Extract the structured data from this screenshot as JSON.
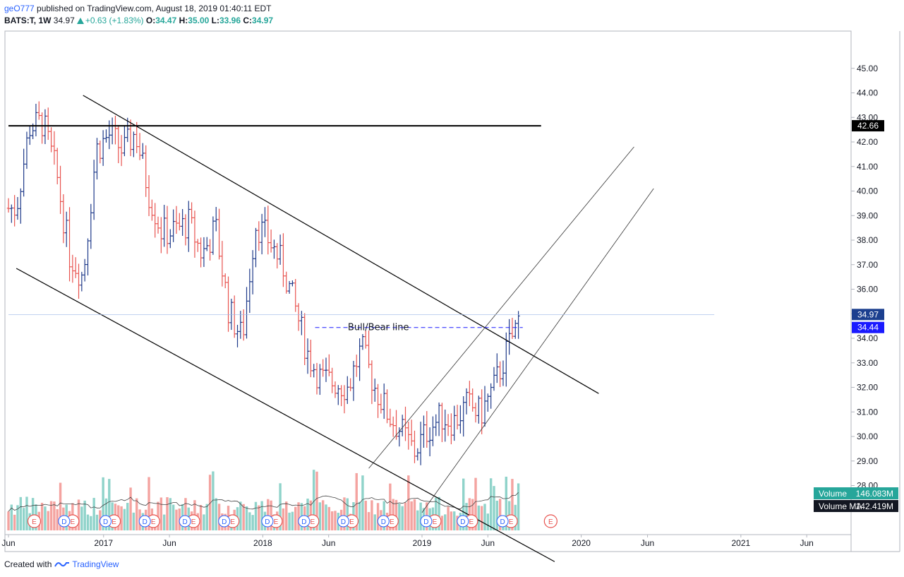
{
  "header": {
    "user": "geO777",
    "published_text": "published on TradingView.com, August 18, 2019 01:40:11 EDT",
    "symbol": "BATS:T, 1W",
    "last": "34.97",
    "change": "+0.63 (+1.83%)",
    "o_label": "O:",
    "o_value": "34.47",
    "h_label": "H:",
    "h_value": "35.00",
    "l_label": "L:",
    "l_value": "33.96",
    "c_label": "C:",
    "c_value": "34.97"
  },
  "footer": {
    "created_with": "Created with",
    "brand": "TradingView"
  },
  "colors": {
    "up": "#1e3a8a",
    "down": "#e8534f",
    "vol_up": "#8fd3ca",
    "vol_down": "#f4a3a0",
    "accent_blue": "#2962ff",
    "volume_badge": "#26a69a",
    "price_badge": "#1c3f8f",
    "bull_bear_badge": "#1a1aff"
  },
  "chart_data": {
    "type": "candlestick",
    "timeframe": "1W",
    "x_ticks": [
      "Jun",
      "2017",
      "Jun",
      "2018",
      "Jun",
      "2019",
      "Jun",
      "2020",
      "Jun",
      "2021",
      "Jun"
    ],
    "y_ticks": [
      "27.00",
      "28.00",
      "29.00",
      "30.00",
      "31.00",
      "32.00",
      "33.00",
      "34.00",
      "35.00",
      "36.00",
      "37.00",
      "38.00",
      "39.00",
      "40.00",
      "41.00",
      "42.00",
      "43.00",
      "44.00",
      "45.00"
    ],
    "ylim": [
      26.0,
      45.8
    ],
    "price_labels": {
      "resistance": "42.66",
      "last": "34.97",
      "bull_bear": "34.44"
    },
    "annotation": "Bull/Bear line",
    "volume_label": "Volume",
    "volume_value": "146.083M",
    "volume_ma_label": "Volume MA",
    "volume_ma_value": "142.419M",
    "earnings_marker": "E",
    "dividend_marker": "D",
    "close_path": [
      [
        "2016-06",
        39.3
      ],
      [
        "2016-07",
        42.6
      ],
      [
        "2016-08",
        42.8
      ],
      [
        "2016-09",
        40.7
      ],
      [
        "2016-10",
        37.4
      ],
      [
        "2016-11",
        36.5
      ],
      [
        "2016-12",
        41.7
      ],
      [
        "2017-01",
        42.3
      ],
      [
        "2017-02",
        41.6
      ],
      [
        "2017-03",
        42.4
      ],
      [
        "2017-04",
        39.9
      ],
      [
        "2017-05",
        38.3
      ],
      [
        "2017-06",
        38.4
      ],
      [
        "2017-07",
        38.7
      ],
      [
        "2017-08",
        37.4
      ],
      [
        "2017-09",
        38.5
      ],
      [
        "2017-10",
        35.1
      ],
      [
        "2017-11",
        34.0
      ],
      [
        "2017-12",
        38.7
      ],
      [
        "2018-01",
        38.0
      ],
      [
        "2018-02",
        37.0
      ],
      [
        "2018-03",
        35.3
      ],
      [
        "2018-04",
        33.3
      ],
      [
        "2018-05",
        32.3
      ],
      [
        "2018-06",
        32.2
      ],
      [
        "2018-07",
        32.0
      ],
      [
        "2018-08",
        33.6
      ],
      [
        "2018-09",
        32.0
      ],
      [
        "2018-10",
        30.9
      ],
      [
        "2018-11",
        30.2
      ],
      [
        "2018-12",
        29.4
      ],
      [
        "2019-01",
        30.3
      ],
      [
        "2019-02",
        30.8
      ],
      [
        "2019-03",
        30.6
      ],
      [
        "2019-04",
        31.3
      ],
      [
        "2019-05",
        30.9
      ],
      [
        "2019-06",
        32.0
      ],
      [
        "2019-07",
        33.5
      ],
      [
        "2019-08",
        34.97
      ]
    ]
  }
}
